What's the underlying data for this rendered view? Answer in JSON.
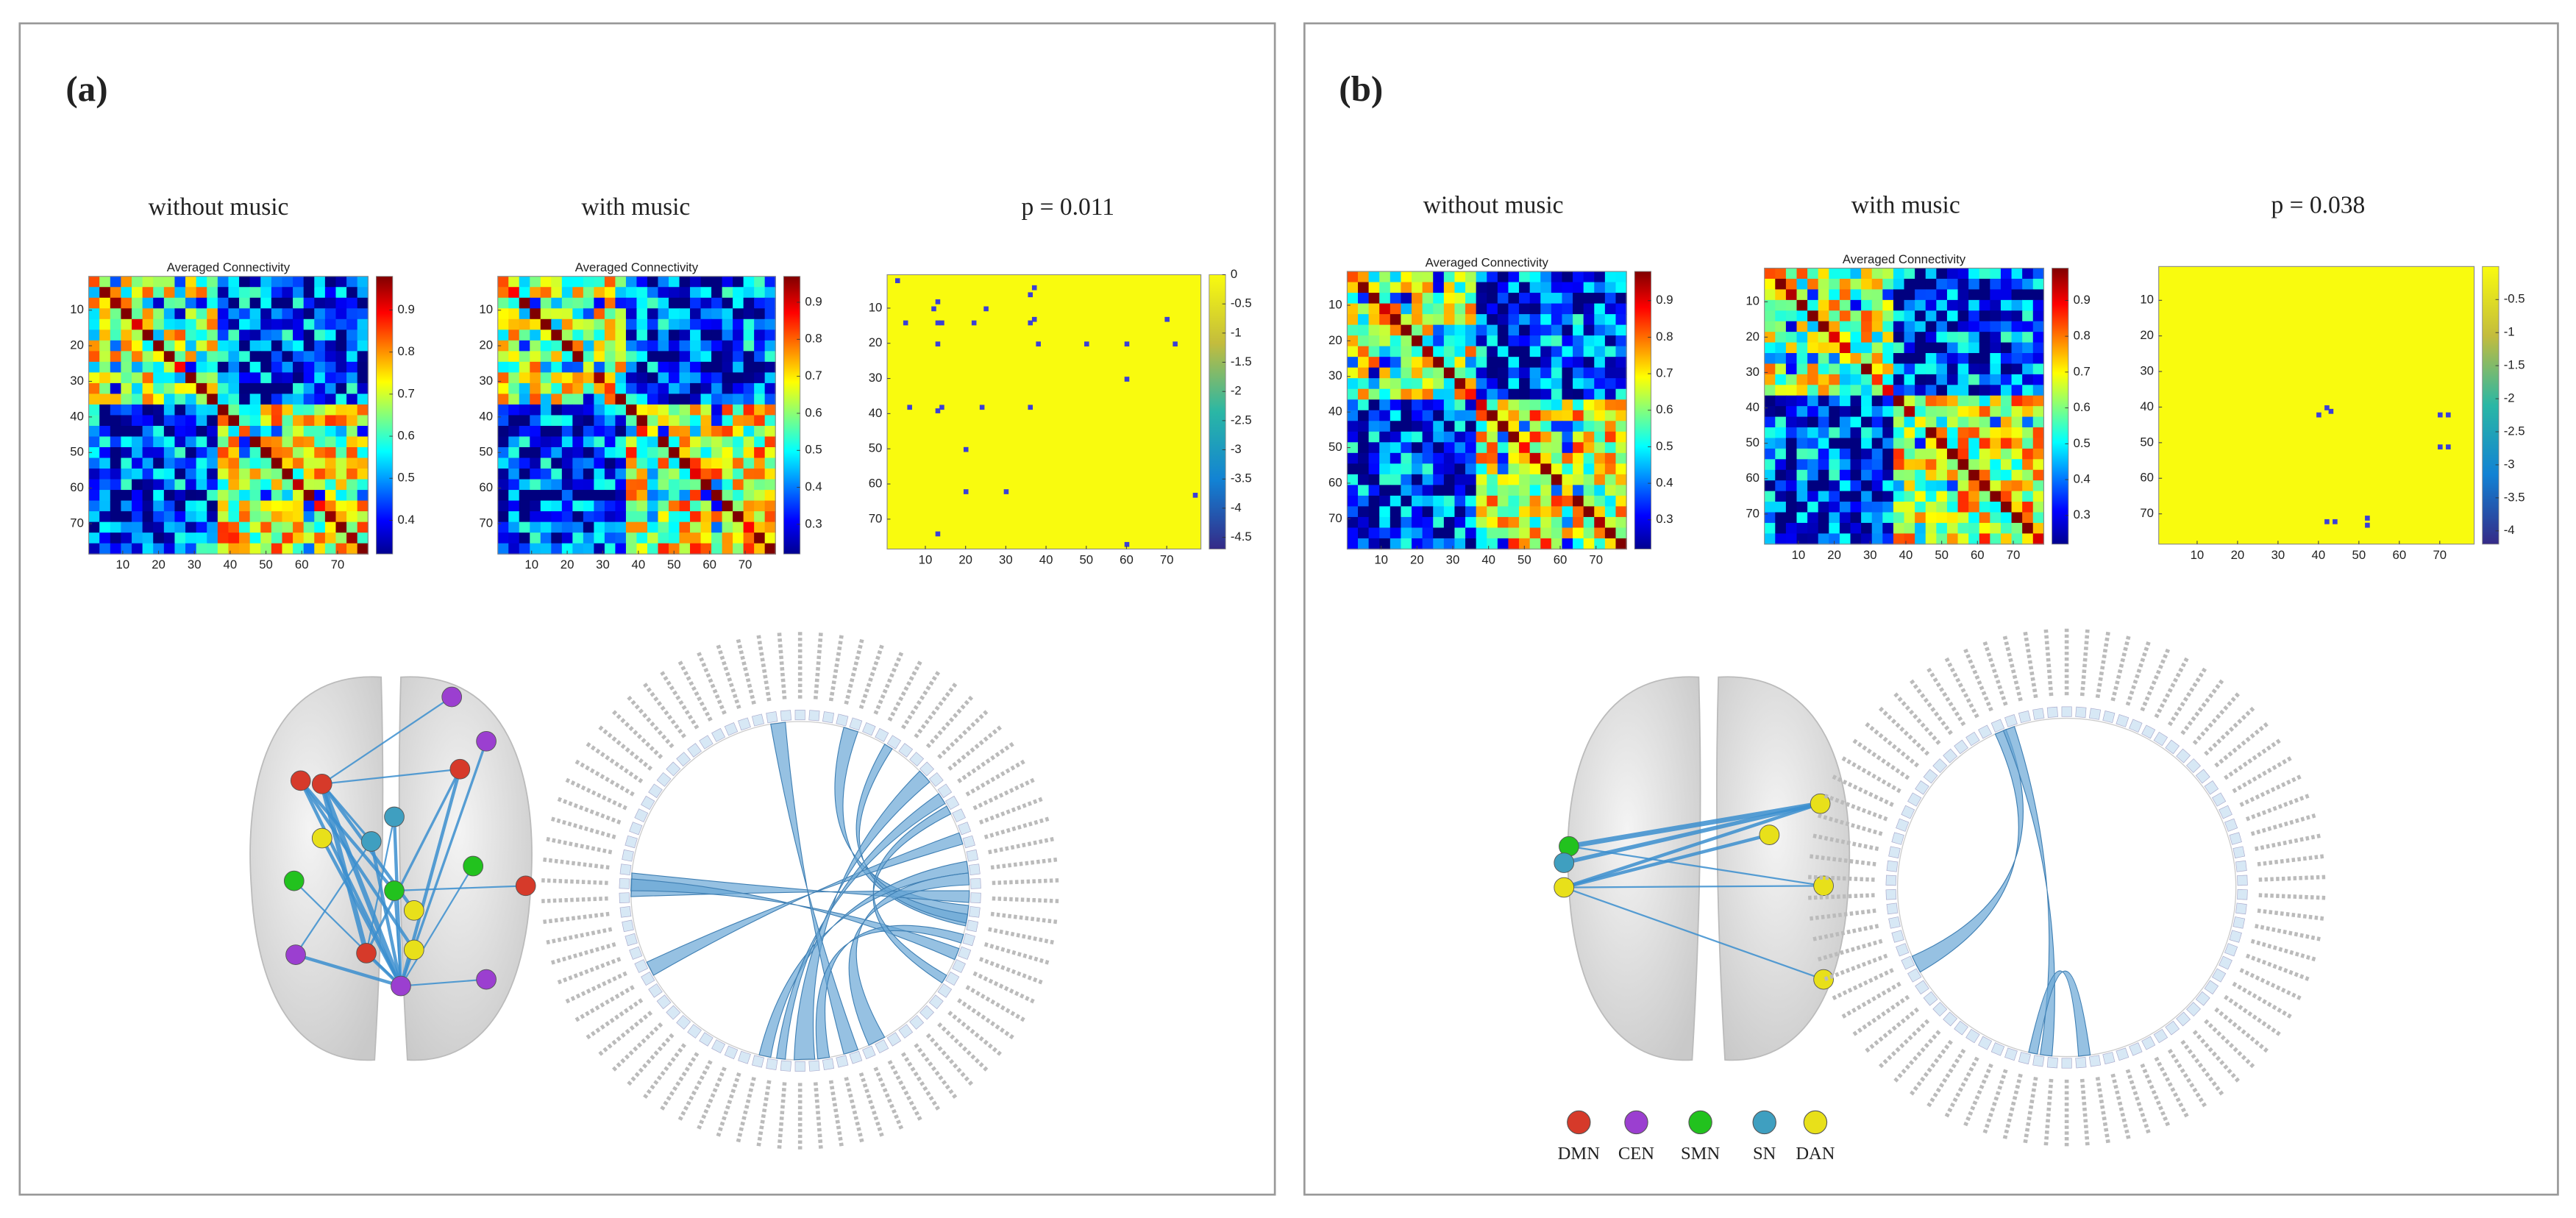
{
  "panels": [
    {
      "label": "(a)",
      "columns": [
        {
          "title": "without music",
          "heatmap": {
            "title": "Averaged Connectivity",
            "xticks": [
              10,
              20,
              30,
              40,
              50,
              60,
              70
            ],
            "yticks": [
              10,
              20,
              30,
              40,
              50,
              60,
              70
            ],
            "clim": [
              0.32,
              0.98
            ],
            "cbar_ticks": [
              0.4,
              0.5,
              0.6,
              0.7,
              0.8,
              0.9
            ]
          }
        },
        {
          "title": "with music",
          "heatmap": {
            "title": "Averaged Connectivity",
            "xticks": [
              10,
              20,
              30,
              40,
              50,
              60,
              70
            ],
            "yticks": [
              10,
              20,
              30,
              40,
              50,
              60,
              70
            ],
            "clim": [
              0.22,
              0.97
            ],
            "cbar_ticks": [
              0.3,
              0.4,
              0.5,
              0.6,
              0.7,
              0.8,
              0.9
            ]
          }
        },
        {
          "title": "p = 0.011",
          "heatmap": {
            "xticks": [
              10,
              20,
              30,
              40,
              50,
              60,
              70
            ],
            "yticks": [
              10,
              20,
              30,
              40,
              50,
              60,
              70
            ],
            "clim": [
              -4.7,
              0
            ],
            "cbar_ticks": [
              0,
              -0.5,
              -1,
              -1.5,
              -2,
              -2.5,
              -3,
              -3.5,
              -4,
              -4.5
            ]
          }
        }
      ]
    },
    {
      "label": "(b)",
      "columns": [
        {
          "title": "without music",
          "heatmap": {
            "title": "Averaged Connectivity",
            "xticks": [
              10,
              20,
              30,
              40,
              50,
              60,
              70
            ],
            "yticks": [
              10,
              20,
              30,
              40,
              50,
              60,
              70
            ],
            "clim": [
              0.22,
              0.98
            ],
            "cbar_ticks": [
              0.3,
              0.4,
              0.5,
              0.6,
              0.7,
              0.8,
              0.9
            ]
          }
        },
        {
          "title": "with music",
          "heatmap": {
            "title": "Averaged Connectivity",
            "xticks": [
              10,
              20,
              30,
              40,
              50,
              60,
              70
            ],
            "yticks": [
              10,
              20,
              30,
              40,
              50,
              60,
              70
            ],
            "clim": [
              0.22,
              0.99
            ],
            "cbar_ticks": [
              0.3,
              0.4,
              0.5,
              0.6,
              0.7,
              0.8,
              0.9
            ]
          }
        },
        {
          "title": "p = 0.038",
          "heatmap": {
            "xticks": [
              10,
              20,
              30,
              40,
              50,
              60,
              70
            ],
            "yticks": [
              10,
              20,
              30,
              40,
              50,
              60,
              70
            ],
            "clim": [
              -4.2,
              0
            ],
            "cbar_ticks": [
              -0.5,
              -1,
              -1.5,
              -2,
              -2.5,
              -3,
              -3.5,
              -4
            ]
          }
        }
      ]
    }
  ],
  "legend": [
    {
      "name": "DMN",
      "color": "#d63a2a"
    },
    {
      "name": "CEN",
      "color": "#9b3fd0"
    },
    {
      "name": "SMN",
      "color": "#22c21e"
    },
    {
      "name": "SN",
      "color": "#3f9fc0"
    },
    {
      "name": "DAN",
      "color": "#e8e01a"
    }
  ]
}
